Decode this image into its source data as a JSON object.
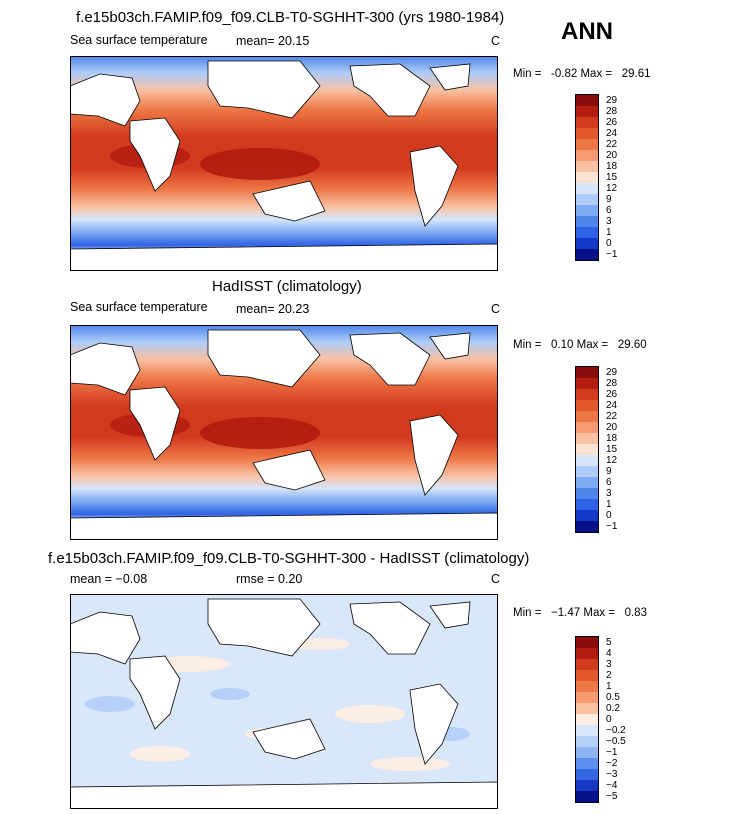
{
  "season": "ANN",
  "panels": [
    {
      "title": "f.e15b03ch.FAMIP.f09_f09.CLB-T0-SGHHT-300 (yrs 1980-1984)",
      "field": "Sea surface temperature",
      "stat1": "mean=  20.15",
      "stat2": "",
      "units": "C",
      "min_label": "Min =",
      "min": "-0.82",
      "max_label": "Max =",
      "max": "29.61",
      "levels": [
        "29",
        "28",
        "26",
        "24",
        "22",
        "20",
        "18",
        "15",
        "12",
        "9",
        "6",
        "3",
        "1",
        "0",
        "−1"
      ],
      "colors": [
        "#8a0b0b",
        "#b31c10",
        "#d23a1e",
        "#e4572d",
        "#ee7747",
        "#f59a71",
        "#fac0a2",
        "#fde4d2",
        "#d5e6fb",
        "#aecdf7",
        "#7fabf2",
        "#4f86ec",
        "#2f62e4",
        "#1438c7",
        "#06128a"
      ]
    },
    {
      "title": "HadISST (climatology)",
      "field": "Sea surface temperature",
      "stat1": "mean=  20.23",
      "stat2": "",
      "units": "C",
      "min_label": "Min =",
      "min": "0.10",
      "max_label": "Max =",
      "max": "29.60",
      "levels": [
        "29",
        "28",
        "26",
        "24",
        "22",
        "20",
        "18",
        "15",
        "12",
        "9",
        "6",
        "3",
        "1",
        "0",
        "−1"
      ],
      "colors": [
        "#8a0b0b",
        "#b31c10",
        "#d23a1e",
        "#e4572d",
        "#ee7747",
        "#f59a71",
        "#fac0a2",
        "#fde4d2",
        "#d5e6fb",
        "#aecdf7",
        "#7fabf2",
        "#4f86ec",
        "#2f62e4",
        "#1438c7",
        "#06128a"
      ]
    },
    {
      "title": "f.e15b03ch.FAMIP.f09_f09.CLB-T0-SGHHT-300 - HadISST (climatology)",
      "field": "",
      "stat1": "mean =  −0.08",
      "stat2": "rmse =   0.20",
      "units": "C",
      "min_label": "Min =",
      "min": "−1.47",
      "max_label": "Max =",
      "max": "0.83",
      "levels": [
        "5",
        "4",
        "3",
        "2",
        "1",
        "0.5",
        "0.2",
        "0",
        "−0.2",
        "−0.5",
        "−1",
        "−2",
        "−3",
        "−4",
        "−5"
      ],
      "colors": [
        "#8a0b0b",
        "#b31c10",
        "#d23a1e",
        "#e4572d",
        "#ee7747",
        "#f59a71",
        "#fac0a2",
        "#fdeee4",
        "#d9e7fb",
        "#b6d0f7",
        "#8fb4f3",
        "#5f8fee",
        "#3566e4",
        "#1838c4",
        "#06128a"
      ]
    }
  ],
  "chart_data": [
    {
      "type": "heatmap",
      "title": "f.e15b03ch.FAMIP.f09_f09.CLB-T0-SGHHT-300 (yrs 1980-1984)",
      "variable": "Sea surface temperature",
      "units": "C",
      "mean": 20.15,
      "min": -0.82,
      "max": 29.61,
      "contour_levels": [
        -1,
        0,
        1,
        3,
        6,
        9,
        12,
        15,
        18,
        20,
        22,
        24,
        26,
        28,
        29
      ],
      "projection": "global cylindrical equidistant, 0°–360° longitude"
    },
    {
      "type": "heatmap",
      "title": "HadISST (climatology)",
      "variable": "Sea surface temperature",
      "units": "C",
      "mean": 20.23,
      "min": 0.1,
      "max": 29.6,
      "contour_levels": [
        -1,
        0,
        1,
        3,
        6,
        9,
        12,
        15,
        18,
        20,
        22,
        24,
        26,
        28,
        29
      ]
    },
    {
      "type": "heatmap",
      "title": "f.e15b03ch.FAMIP.f09_f09.CLB-T0-SGHHT-300 - HadISST (climatology)",
      "units": "C",
      "mean": -0.08,
      "rmse": 0.2,
      "min": -1.47,
      "max": 0.83,
      "contour_levels": [
        -5,
        -4,
        -3,
        -2,
        -1,
        -0.5,
        -0.2,
        0,
        0.2,
        0.5,
        1,
        2,
        3,
        4,
        5
      ]
    }
  ]
}
